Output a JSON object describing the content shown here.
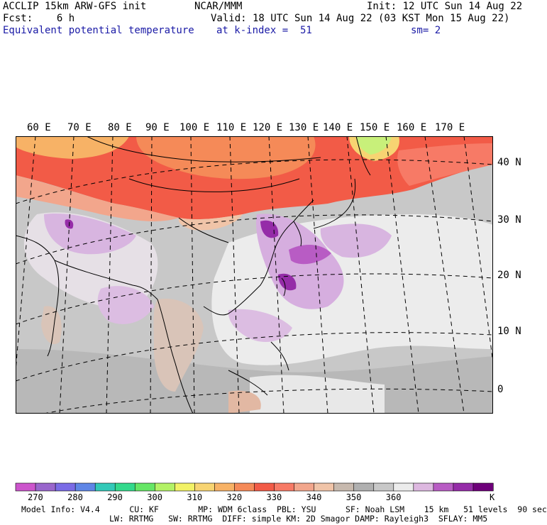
{
  "header": {
    "line1_left": "ACCLIP 15km ARW-GFS init",
    "line1_center": "NCAR/MMM",
    "line1_right": "Init: 12 UTC Sun 14 Aug 22",
    "line2_left": "Fcst:    6 h",
    "line2_right": "Valid: 18 UTC Sun 14 Aug 22 (03 KST Mon 15 Aug 22)",
    "line3_left": "Equivalent potential temperature",
    "line3_center": "at k-index =  51",
    "line3_right": "sm= 2"
  },
  "map": {
    "longitude_labels": [
      "60 E",
      "70 E",
      "80 E",
      "90 E",
      "100 E",
      "110 E",
      "120 E",
      "130 E",
      "140 E",
      "150 E",
      "160 E",
      "170 E"
    ],
    "latitude_labels": [
      "40 N",
      "30 N",
      "20 N",
      "10 N",
      "0"
    ]
  },
  "colorbar": {
    "unit": "K",
    "colors": [
      "#cc55cc",
      "#9966cc",
      "#7a6be6",
      "#5f86e6",
      "#33c9b8",
      "#33d98c",
      "#66e666",
      "#b3f266",
      "#f2f266",
      "#f7d472",
      "#f7b266",
      "#f58a58",
      "#f25b47",
      "#f77a66",
      "#f2a68c",
      "#f0c4a8",
      "#c7b9ae",
      "#b0b0b0",
      "#c8c8c8",
      "#ececec",
      "#ddb8e0",
      "#b85cc4",
      "#952ca8",
      "#6e007a"
    ],
    "labels": [
      "270",
      "280",
      "290",
      "300",
      "310",
      "320",
      "330",
      "340",
      "350",
      "360"
    ]
  },
  "footer": {
    "line1": "Model Info: V4.4      CU: KF        MP: WDM 6class  PBL: YSU      SF: Noah LSM    15 km   51 levels  90 sec",
    "line2": "LW: RRTMG   SW: RRTMG  DIFF: simple KM: 2D Smagor DAMP: Rayleigh3  SFLAY: MM5"
  }
}
